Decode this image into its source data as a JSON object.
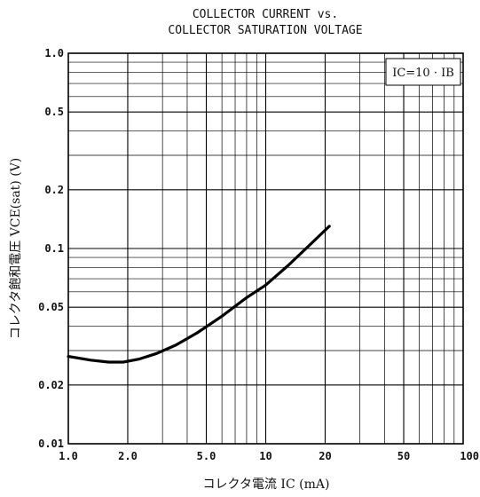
{
  "chart_data": {
    "type": "line",
    "title": [
      "COLLECTOR CURRENT vs.",
      "COLLECTOR SATURATION VOLTAGE"
    ],
    "xlabel": "コレクタ電流 IC (mA)",
    "ylabel": "コレクタ飽和電圧 VCE(sat) (V)",
    "xscale": "log",
    "yscale": "log",
    "xlim": [
      1,
      100
    ],
    "ylim": [
      0.01,
      1
    ],
    "grid": true,
    "x_ticks": [
      "1.0",
      "2.0",
      "5.0",
      "10",
      "20",
      "50",
      "100"
    ],
    "x_tick_values": [
      1,
      2,
      5,
      10,
      20,
      50,
      100
    ],
    "y_ticks": [
      "1.0",
      "0.5",
      "0.2",
      "0.1",
      "0.05",
      "0.02",
      "0.01"
    ],
    "y_tick_values": [
      1,
      0.5,
      0.2,
      0.1,
      0.05,
      0.02,
      0.01
    ],
    "annotation": "IC=10 · IB",
    "series": [
      {
        "x": [
          1.0,
          1.3,
          1.6,
          1.9,
          2.3,
          2.8,
          3.5,
          4.5,
          6.0,
          8.0,
          10.0,
          13.0,
          16.0,
          21.0
        ],
        "y": [
          0.028,
          0.0268,
          0.0262,
          0.0262,
          0.0272,
          0.029,
          0.032,
          0.037,
          0.045,
          0.056,
          0.065,
          0.082,
          0.1,
          0.13
        ]
      }
    ]
  }
}
